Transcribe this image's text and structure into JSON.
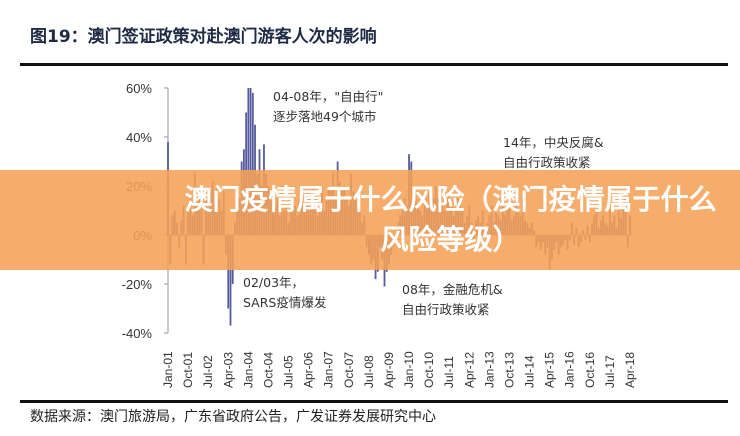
{
  "header": {
    "title": "图19：澳门签证政策对赴澳门游客人次的影响"
  },
  "banner": {
    "text": "澳门疫情属于什么风险（澳门疫情属于什么风险等级）"
  },
  "source": "数据来源：澳门旅游局，广东省政府公告，广发证券发展研究中心",
  "colors": {
    "bar": "#565b9e",
    "banner": "#f5a055"
  },
  "annotations": [
    {
      "line1": "04-08年，\"自由行\"",
      "line2": "逐步落地49个城市"
    },
    {
      "line1": "14年，中央反腐&",
      "line2": "自由行政策收紧"
    },
    {
      "line1": "02/03年，",
      "line2": "SARS疫情爆发"
    },
    {
      "line1": "08年，金融危机&",
      "line2": "自由行政策收紧"
    }
  ],
  "chart_data": {
    "type": "bar",
    "title": "",
    "xlabel": "",
    "ylabel": "",
    "ylim": [
      -40,
      60
    ],
    "yticks": [
      "60%",
      "40%",
      "20%",
      "0%",
      "-20%",
      "-40%"
    ],
    "xticks": [
      "Jan-01",
      "Oct-01",
      "Jul-02",
      "Apr-03",
      "Jan-04",
      "Oct-04",
      "Jul-05",
      "Apr-06",
      "Jan-07",
      "Oct-07",
      "Jul-08",
      "Apr-09",
      "Jan-10",
      "Oct-10",
      "Jul-11",
      "Apr-12",
      "Jan-13",
      "Oct-13",
      "Jul-14",
      "Apr-15",
      "Jan-16",
      "Oct-16",
      "Jul-17",
      "Apr-18"
    ],
    "x_start": "Jan-01",
    "x_end": "Apr-18",
    "frequency": "monthly",
    "values": [
      38,
      -12,
      8,
      10,
      5,
      -5,
      6,
      12,
      -12,
      10,
      15,
      8,
      25,
      12,
      18,
      20,
      -12,
      15,
      10,
      18,
      22,
      12,
      20,
      15,
      10,
      18,
      -8,
      -30,
      -37,
      -20,
      5,
      12,
      15,
      30,
      35,
      50,
      60,
      60,
      58,
      45,
      25,
      35,
      20,
      37,
      25,
      20,
      15,
      10,
      12,
      15,
      8,
      20,
      10,
      12,
      5,
      18,
      10,
      12,
      8,
      15,
      15,
      10,
      18,
      12,
      16,
      20,
      12,
      8,
      15,
      18,
      10,
      14,
      20,
      18,
      25,
      15,
      30,
      22,
      18,
      20,
      15,
      12,
      25,
      18,
      15,
      12,
      10,
      5,
      8,
      -5,
      -8,
      -12,
      -10,
      -18,
      -15,
      -5,
      -10,
      -21,
      -15,
      -12,
      -8,
      -5,
      -3,
      5,
      8,
      10,
      15,
      12,
      33,
      30,
      18,
      15,
      12,
      10,
      8,
      15,
      12,
      18,
      10,
      15,
      20,
      15,
      18,
      12,
      10,
      15,
      18,
      12,
      8,
      10,
      15,
      12,
      10,
      5,
      8,
      12,
      5,
      -3,
      6,
      8,
      5,
      10,
      3,
      5,
      8,
      12,
      5,
      10,
      8,
      6,
      12,
      8,
      10,
      12,
      6,
      8,
      12,
      10,
      8,
      15,
      6,
      5,
      3,
      5,
      2,
      -5,
      -3,
      -6,
      -3,
      -8,
      -5,
      -14,
      -10,
      -6,
      -3,
      -8,
      -5,
      -4,
      -2,
      -6,
      -2,
      5,
      -4,
      3,
      -5,
      -3,
      2,
      -2,
      4,
      -3,
      5,
      8,
      10,
      3,
      6,
      8,
      5,
      4,
      10,
      5,
      8,
      3,
      10,
      7,
      12,
      18,
      -5,
      8
    ]
  }
}
